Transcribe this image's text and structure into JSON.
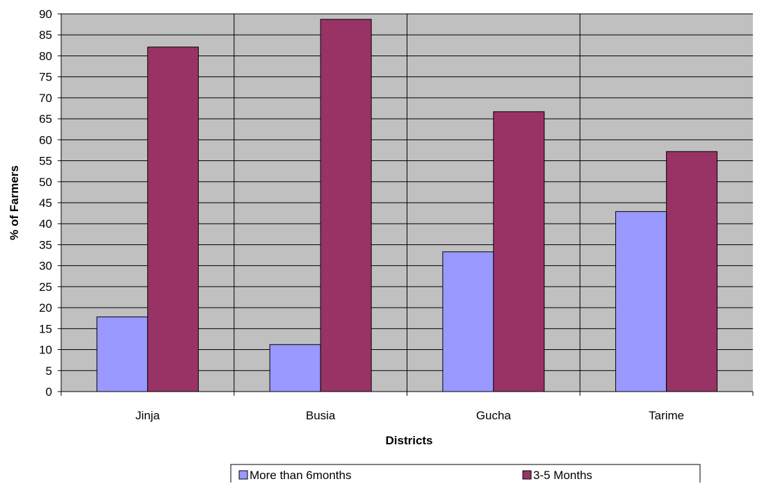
{
  "chart_data": {
    "type": "bar",
    "title": "",
    "xlabel": "Districts",
    "ylabel": "% of Farmers",
    "categories": [
      "Jinja",
      "Busia",
      "Gucha",
      "Tarime"
    ],
    "series": [
      {
        "name": "More than 6months",
        "values": [
          17.8,
          11.2,
          33.3,
          42.9
        ],
        "color": "#9999ff"
      },
      {
        "name": "3-5 Months",
        "values": [
          82.1,
          88.7,
          66.7,
          57.2
        ],
        "color": "#993366"
      }
    ],
    "ylim": [
      0,
      90
    ],
    "yticks": [
      0,
      5,
      10,
      15,
      20,
      25,
      30,
      35,
      40,
      45,
      50,
      55,
      60,
      65,
      70,
      75,
      80,
      85,
      90
    ],
    "grid": true,
    "plot_background": "#c0c0c0",
    "legend_position": "bottom"
  }
}
